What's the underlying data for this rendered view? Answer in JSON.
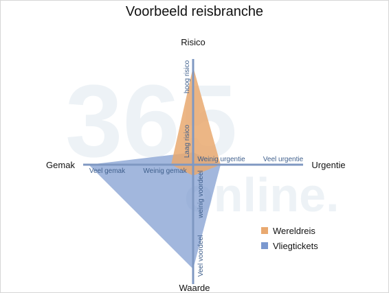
{
  "title": "Voorbeeld reisbranche",
  "axes": {
    "top": "Risico",
    "bottom": "Waarde",
    "left": "Gemak",
    "right": "Urgentie"
  },
  "axis_labels": {
    "high_risk": "hoog risico",
    "low_risk": "Laag risico",
    "little_urgency": "Weinig urgentie",
    "much_urgency": "Veel urgentie",
    "much_convenience": "Veel gemak",
    "little_convenience": "Weinig gemak",
    "little_value": "weinig voordeel",
    "much_value": "Veel voordeel"
  },
  "watermark": {
    "digits": "365",
    "word": "online."
  },
  "colors": {
    "axis": "#7f98c2",
    "wereldreis": "#e9a970",
    "vliegtickets": "#7a98cf",
    "watermark": "#dfe8ef"
  },
  "chart_data": {
    "type": "radar",
    "axes": [
      "Risico",
      "Urgentie",
      "Waarde",
      "Gemak"
    ],
    "series": [
      {
        "name": "Wereldreis",
        "values": [
          0.95,
          0.25,
          0.1,
          0.2
        ]
      },
      {
        "name": "Vliegtickets",
        "values": [
          0.12,
          0.25,
          0.95,
          0.95
        ]
      }
    ]
  },
  "legend": [
    {
      "label": "Wereldreis",
      "color": "#e9a970"
    },
    {
      "label": "Vliegtickets",
      "color": "#7a98cf"
    }
  ]
}
